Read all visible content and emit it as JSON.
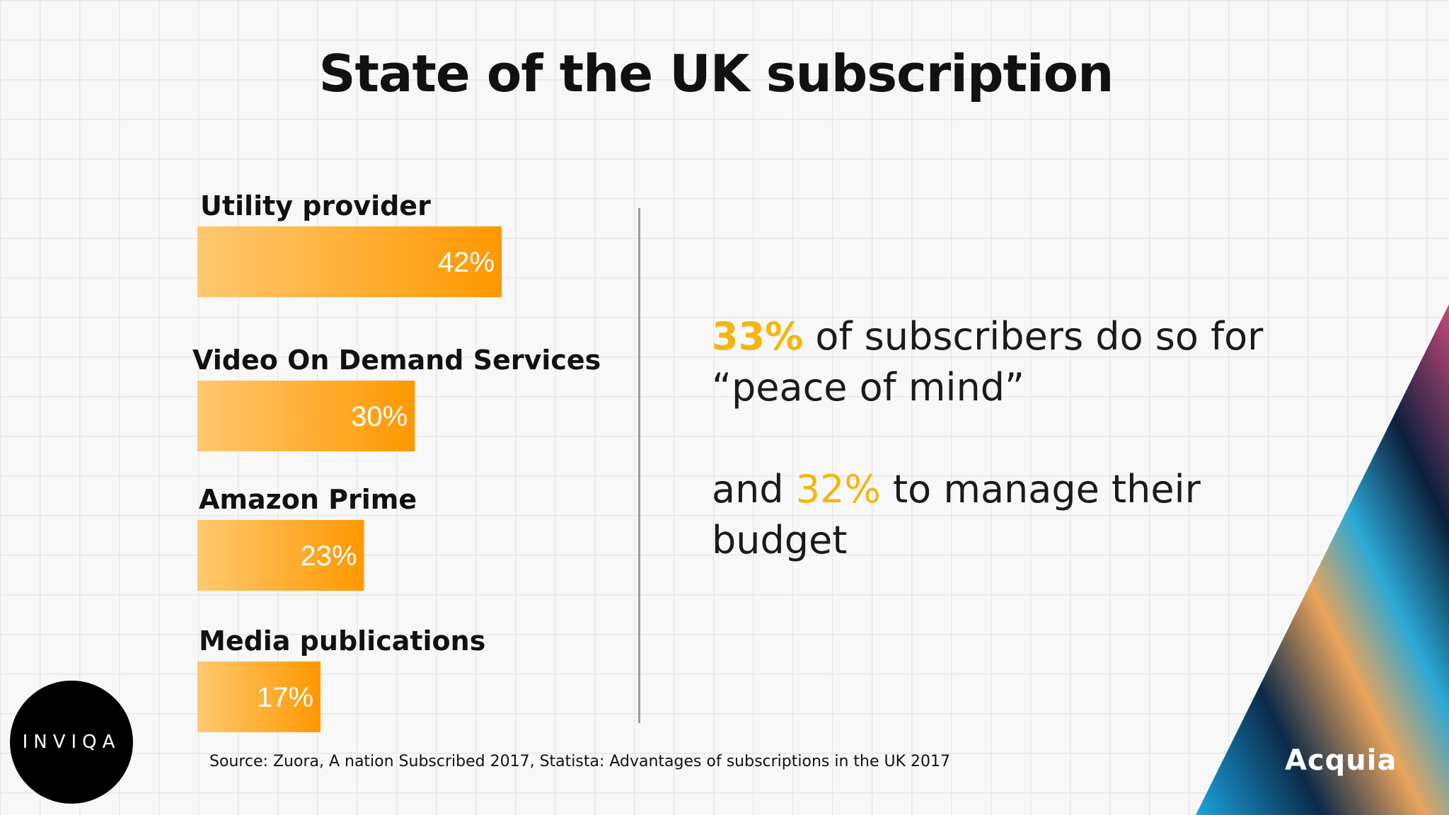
{
  "slide": {
    "title": "State of the UK subscription",
    "source": "Source: Zuora, A nation Subscribed 2017, Statista: Advantages of subscriptions in the UK 2017",
    "inviqa_logo_text": "INVIQA",
    "acquia_logo_text": "Acquia"
  },
  "stats": {
    "line1_pct": "33%",
    "line1_text": " of subscribers do so for “peace of mind”",
    "line2_pre": "and ",
    "line2_pct": "32%",
    "line2_text": " to manage their budget"
  },
  "chart_data": {
    "type": "bar",
    "orientation": "horizontal",
    "categories": [
      "Utility provider",
      "Video On Demand Services",
      "Amazon Prime",
      "Media publications"
    ],
    "values": [
      42,
      30,
      23,
      17
    ],
    "value_labels": [
      "42%",
      "30%",
      "23%",
      "17%"
    ],
    "unit": "%",
    "bar_colors": [
      "#ffc870",
      "#ff9800"
    ],
    "grid": false
  }
}
